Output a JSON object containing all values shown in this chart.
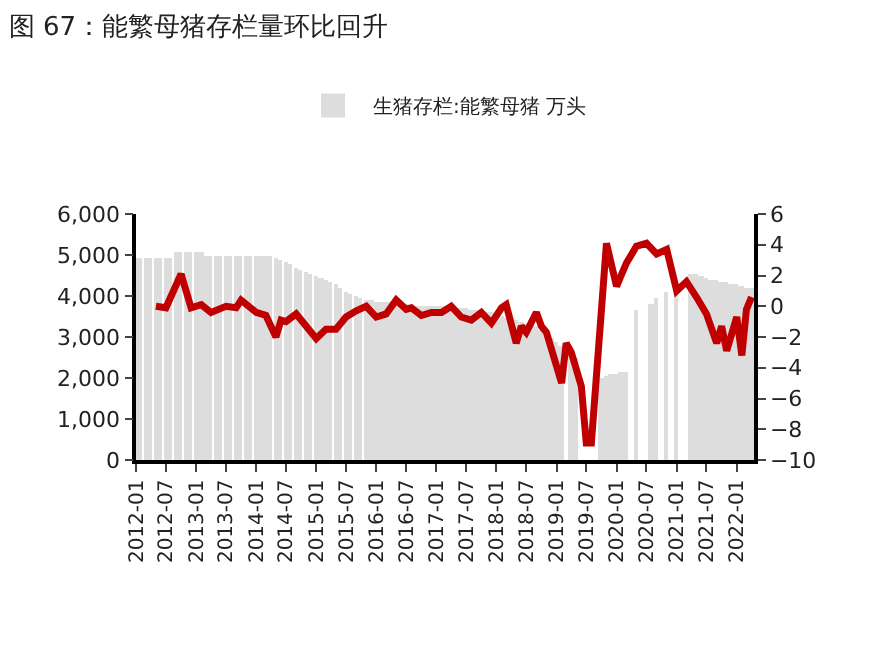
{
  "chart_data": {
    "type": "bar",
    "title": "图 67：能繁母猪存栏量环比回升",
    "legend": "top",
    "xlim": [
      "2012-01-01",
      "2022-04-16"
    ],
    "xticks": [
      "2012-01",
      "2012-07",
      "2013-01",
      "2013-07",
      "2014-01",
      "2014-07",
      "2015-01",
      "2015-07",
      "2016-01",
      "2016-07",
      "2017-01",
      "2017-07",
      "2018-01",
      "2018-07",
      "2019-01",
      "2019-07",
      "2020-01",
      "2020-07",
      "2021-01",
      "2021-07",
      "2022-01"
    ],
    "ylim": [
      0,
      6000
    ],
    "yticks": [
      {
        "value": 0,
        "label": "0"
      },
      {
        "value": 1000,
        "label": "1,000"
      },
      {
        "value": 2000,
        "label": "2,000"
      },
      {
        "value": 3000,
        "label": "3,000"
      },
      {
        "value": 4000,
        "label": "4,000"
      },
      {
        "value": 5000,
        "label": "5,000"
      },
      {
        "value": 6000,
        "label": "6,000"
      }
    ],
    "y2lim": [
      -10,
      6
    ],
    "y2ticks": [
      {
        "value": -10,
        "label": "−10"
      },
      {
        "value": -8,
        "label": "−8"
      },
      {
        "value": -6,
        "label": "−6"
      },
      {
        "value": -4,
        "label": "−4"
      },
      {
        "value": -2,
        "label": "−2"
      },
      0,
      2,
      4,
      6
    ],
    "series": [
      {
        "name": "生猪存栏:能繁母猪 万头",
        "color": "#dddddd",
        "x": [
          "2012-01",
          "2012-02",
          "2012-03",
          "2012-04",
          "2012-05",
          "2012-06",
          "2012-07",
          "2012-08",
          "2012-09",
          "2012-10",
          "2012-11",
          "2012-12",
          "2013-01",
          "2013-02",
          "2013-03",
          "2013-04",
          "2013-05",
          "2013-06",
          "2013-07",
          "2013-08",
          "2013-09",
          "2013-10",
          "2013-11",
          "2013-12",
          "2014-01",
          "2014-02",
          "2014-03",
          "2014-04",
          "2014-05",
          "2014-06",
          "2014-07",
          "2014-08",
          "2014-09",
          "2014-10",
          "2014-11",
          "2014-12",
          "2015-01",
          "2015-02",
          "2015-03",
          "2015-04",
          "2015-05",
          "2015-06",
          "2015-07",
          "2015-08",
          "2015-09",
          "2015-10",
          "2015-11",
          "2015-12",
          "2016-01",
          "2016-02",
          "2016-03",
          "2016-04",
          "2016-05",
          "2016-06",
          "2016-07",
          "2016-08",
          "2016-09",
          "2016-10",
          "2016-11",
          "2016-12",
          "2017-01",
          "2017-02",
          "2017-03",
          "2017-04",
          "2017-05",
          "2017-06",
          "2017-07",
          "2017-08",
          "2017-09",
          "2017-10",
          "2017-11",
          "2017-12",
          "2018-01",
          "2018-02",
          "2018-03",
          "2018-04",
          "2018-05",
          "2018-06",
          "2018-07",
          "2018-08",
          "2018-09",
          "2018-10",
          "2018-11",
          "2018-12",
          "2019-01",
          "2019-02",
          "2019-03",
          "2019-04",
          "2019-05",
          "2019-06",
          "2019-07",
          "2019-08",
          "2019-09",
          "2019-10",
          "2019-11",
          "2019-12",
          "2020-01",
          "2020-02",
          "2020-03",
          "2020-04",
          "2020-05",
          "2020-06",
          "2020-07",
          "2020-08",
          "2020-09",
          "2020-10",
          "2020-11",
          "2020-12",
          "2021-01",
          "2021-02",
          "2021-03",
          "2021-04",
          "2021-05",
          "2021-06",
          "2021-07",
          "2021-08",
          "2021-09",
          "2021-10",
          "2021-11",
          "2021-12",
          "2022-01",
          "2022-02",
          "2022-03",
          "2022-04"
        ],
        "values": [
          4950,
          4950,
          4950,
          4950,
          4950,
          4950,
          4950,
          4950,
          5080,
          5080,
          5080,
          5080,
          5080,
          5080,
          5000,
          5000,
          5000,
          5000,
          5000,
          5000,
          5000,
          5000,
          5000,
          5000,
          4980,
          4980,
          4980,
          4980,
          4950,
          4900,
          4850,
          4780,
          4700,
          4650,
          4600,
          4550,
          4500,
          4450,
          4400,
          4350,
          4300,
          4200,
          4100,
          4050,
          3990,
          3930,
          3900,
          3880,
          3860,
          3850,
          3840,
          3830,
          3820,
          3810,
          3800,
          3790,
          3780,
          3780,
          3770,
          3760,
          3760,
          3750,
          3740,
          3730,
          3720,
          3700,
          3690,
          3680,
          3670,
          3650,
          3630,
          3600,
          3560,
          3520,
          3480,
          3440,
          3400,
          3370,
          3340,
          3300,
          3250,
          3180,
          3100,
          3000,
          2900,
          2800,
          null,
          2650,
          2500,
          null,
          null,
          null,
          null,
          2000,
          2050,
          2080,
          2100,
          2130,
          2150,
          null,
          3640,
          null,
          null,
          3800,
          3960,
          null,
          4100,
          null,
          4130,
          null,
          null,
          4560,
          4540,
          4500,
          4460,
          4400,
          4380,
          4350,
          4320,
          4290,
          4270,
          4240,
          4210,
          4200
        ]
      },
      {
        "type": "line",
        "axis": "y2",
        "color": "#c00000",
        "x": [
          "2012-05",
          "2012-07",
          "2012-10",
          "2012-12",
          "2013-02",
          "2013-04",
          "2013-07",
          "2013-09",
          "2013-10",
          "2014-01",
          "2014-03",
          "2014-05",
          "2014-06",
          "2014-07",
          "2014-09",
          "2014-11",
          "2015-01",
          "2015-03",
          "2015-05",
          "2015-07",
          "2015-09",
          "2015-11",
          "2016-01",
          "2016-03",
          "2016-05",
          "2016-07",
          "2016-08",
          "2016-10",
          "2016-12",
          "2017-02",
          "2017-04",
          "2017-06",
          "2017-08",
          "2017-10",
          "2017-12",
          "2018-02",
          "2018-03",
          "2018-05",
          "2018-06",
          "2018-07",
          "2018-09",
          "2018-10",
          "2018-11",
          "2019-02",
          "2019-03",
          "2019-04",
          "2019-06",
          "2019-07",
          "2019-08",
          "2019-11",
          "2020-01",
          "2020-03",
          "2020-05",
          "2020-07",
          "2020-09",
          "2020-11",
          "2021-01",
          "2021-03",
          "2021-05",
          "2021-07",
          "2021-09",
          "2021-10",
          "2021-11",
          "2022-01",
          "2022-02",
          "2022-03",
          "2022-04"
        ],
        "values": [
          0,
          -0.1,
          2.1,
          -0.1,
          0.1,
          -0.4,
          0,
          -0.1,
          0.4,
          -0.4,
          -0.6,
          -2.0,
          -0.9,
          -1.0,
          -0.5,
          -1.3,
          -2.1,
          -1.5,
          -1.5,
          -0.7,
          -0.3,
          0,
          -0.7,
          -0.5,
          0.4,
          -0.2,
          -0.1,
          -0.6,
          -0.4,
          -0.4,
          0,
          -0.7,
          -0.9,
          -0.4,
          -1.1,
          -0.1,
          0.1,
          -2.4,
          -1.3,
          -1.7,
          -0.4,
          -1.3,
          -1.7,
          -5.0,
          -2.4,
          -3.0,
          -5.2,
          -8.9,
          -8.9,
          4.1,
          1.3,
          2.8,
          3.9,
          4.1,
          3.4,
          3.7,
          1.0,
          1.6,
          0.6,
          -0.5,
          -2.4,
          -1.3,
          -2.9,
          -0.7,
          -3.2,
          -0.2,
          0.6
        ]
      }
    ]
  }
}
